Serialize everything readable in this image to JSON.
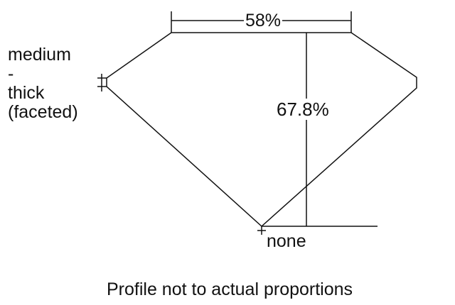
{
  "table_label": "58%",
  "depth_label": "67.8%",
  "culet_label": "none",
  "girdle_label": [
    "medium",
    "-",
    "thick",
    "(faceted)"
  ],
  "caption": "Profile not to actual proportions"
}
